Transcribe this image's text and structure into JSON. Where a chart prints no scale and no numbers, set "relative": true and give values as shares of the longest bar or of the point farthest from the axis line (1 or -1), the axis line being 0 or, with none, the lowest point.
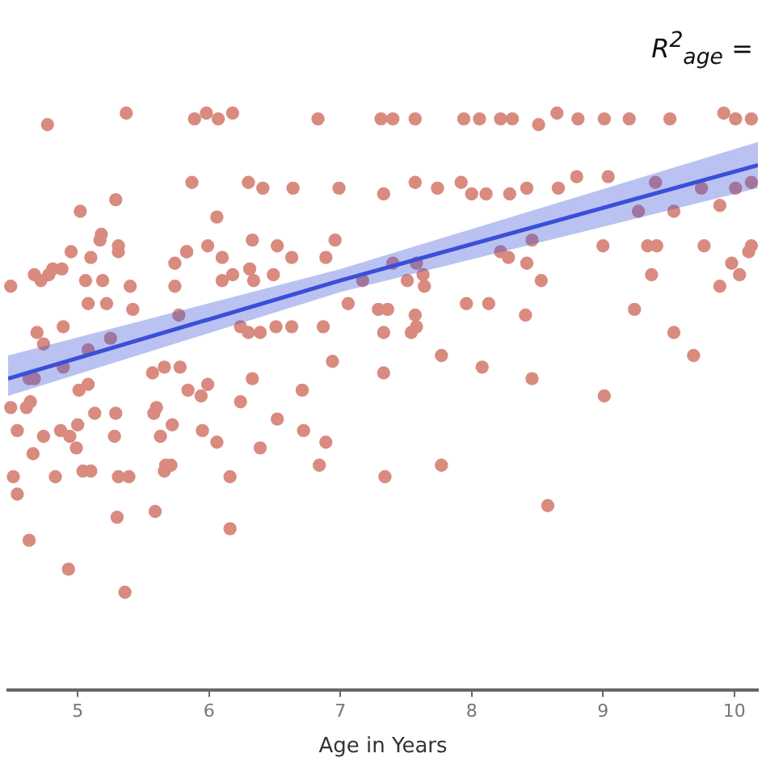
{
  "chart_data": {
    "type": "scatter",
    "relative": true,
    "xlabel": "Age in Years",
    "annotations": [
      "R$^{2}$$_{age}$ ="
    ],
    "xlim": [
      4.47,
      10.18
    ],
    "xticks": [
      5,
      6,
      7,
      8,
      9,
      10
    ],
    "grid": false,
    "legend": false,
    "series": [
      {
        "marker": "circle",
        "color": "#d98b80",
        "x": [
          4.77,
          5.37,
          5.89,
          5.98,
          6.07,
          6.18,
          6.83,
          7.31,
          7.4,
          7.57,
          7.94,
          8.06,
          8.22,
          8.31,
          8.51,
          8.65,
          8.81,
          9.01,
          9.2,
          9.51,
          9.92,
          10.01,
          10.13,
          5.87,
          6.3,
          6.41,
          6.64,
          6.99,
          7.33,
          7.57,
          7.74,
          7.92,
          8.0,
          8.11,
          8.29,
          8.42,
          8.66,
          8.8,
          9.04,
          9.4,
          9.75,
          10.01,
          10.13,
          5.02,
          5.29,
          6.06,
          9.27,
          9.54,
          9.89,
          4.95,
          5.17,
          5.31,
          5.83,
          5.99,
          6.33,
          6.52,
          6.96,
          8.46,
          9.0,
          9.34,
          9.41,
          9.77,
          10.13,
          4.49,
          4.67,
          4.72,
          4.78,
          4.81,
          4.88,
          5.1,
          5.18,
          5.31,
          5.06,
          5.19,
          5.4,
          5.08,
          5.22,
          5.42,
          4.89,
          4.69,
          4.74,
          5.08,
          5.25,
          4.89,
          4.63,
          4.67,
          5.08,
          5.01,
          4.64,
          4.61,
          4.49,
          5.13,
          5.29,
          5.0,
          4.54,
          4.74,
          4.87,
          4.94,
          5.28,
          4.99,
          4.66,
          5.04,
          5.1,
          4.83,
          5.31,
          5.39,
          4.51,
          5.74,
          5.83,
          6.1,
          6.63,
          6.89,
          5.74,
          6.1,
          6.18,
          6.31,
          6.34,
          6.49,
          5.77,
          6.24,
          6.3,
          6.39,
          6.51,
          6.63,
          6.87,
          7.06,
          5.57,
          5.66,
          5.78,
          6.33,
          5.99,
          5.84,
          5.94,
          5.6,
          5.58,
          6.24,
          6.71,
          6.94,
          5.72,
          5.95,
          6.52,
          6.72,
          5.63,
          6.06,
          6.39,
          6.89,
          6.84,
          5.67,
          5.71,
          5.66,
          6.16,
          7.34,
          7.17,
          7.29,
          7.36,
          7.33,
          7.51,
          7.57,
          7.58,
          7.54,
          7.64,
          7.63,
          7.4,
          7.58,
          7.77,
          7.33,
          7.77,
          7.96,
          8.13,
          8.08,
          8.22,
          8.28,
          8.42,
          8.53,
          8.41,
          8.46,
          9.01,
          9.24,
          9.37,
          9.54,
          9.69,
          9.89,
          9.98,
          10.04,
          10.11,
          4.54,
          4.63,
          4.93,
          5.3,
          5.36,
          5.59,
          6.16,
          8.58
        ],
        "values": [
          0.98,
          1.0,
          0.99,
          1.0,
          0.99,
          1.0,
          0.99,
          0.99,
          0.99,
          0.99,
          0.99,
          0.99,
          0.99,
          0.99,
          0.98,
          1.0,
          0.99,
          0.99,
          0.99,
          0.99,
          1.0,
          0.99,
          0.99,
          0.88,
          0.88,
          0.87,
          0.87,
          0.87,
          0.86,
          0.88,
          0.87,
          0.88,
          0.86,
          0.86,
          0.86,
          0.87,
          0.87,
          0.89,
          0.89,
          0.88,
          0.87,
          0.87,
          0.88,
          0.83,
          0.85,
          0.82,
          0.83,
          0.83,
          0.84,
          0.76,
          0.78,
          0.76,
          0.76,
          0.77,
          0.78,
          0.77,
          0.78,
          0.78,
          0.77,
          0.77,
          0.77,
          0.77,
          0.77,
          0.7,
          0.72,
          0.71,
          0.72,
          0.73,
          0.73,
          0.75,
          0.79,
          0.77,
          0.71,
          0.71,
          0.7,
          0.67,
          0.67,
          0.66,
          0.63,
          0.62,
          0.6,
          0.59,
          0.61,
          0.56,
          0.54,
          0.54,
          0.53,
          0.52,
          0.5,
          0.49,
          0.49,
          0.48,
          0.48,
          0.46,
          0.45,
          0.44,
          0.45,
          0.44,
          0.44,
          0.42,
          0.41,
          0.38,
          0.38,
          0.37,
          0.37,
          0.37,
          0.37,
          0.74,
          0.76,
          0.75,
          0.75,
          0.75,
          0.7,
          0.71,
          0.72,
          0.73,
          0.71,
          0.72,
          0.65,
          0.63,
          0.62,
          0.62,
          0.63,
          0.63,
          0.63,
          0.67,
          0.55,
          0.56,
          0.56,
          0.54,
          0.53,
          0.52,
          0.51,
          0.49,
          0.48,
          0.5,
          0.52,
          0.57,
          0.46,
          0.45,
          0.47,
          0.45,
          0.44,
          0.43,
          0.42,
          0.43,
          0.39,
          0.39,
          0.39,
          0.38,
          0.37,
          0.37,
          0.71,
          0.66,
          0.66,
          0.62,
          0.71,
          0.65,
          0.63,
          0.62,
          0.7,
          0.72,
          0.74,
          0.74,
          0.58,
          0.55,
          0.39,
          0.67,
          0.67,
          0.56,
          0.76,
          0.75,
          0.74,
          0.71,
          0.65,
          0.54,
          0.51,
          0.66,
          0.72,
          0.62,
          0.58,
          0.7,
          0.74,
          0.72,
          0.76,
          0.34,
          0.26,
          0.21,
          0.3,
          0.17,
          0.31,
          0.28,
          0.32
        ]
      },
      {
        "type": "line",
        "color": "#3a4fd8",
        "x": [
          4.47,
          7,
          10.18
        ],
        "values": [
          0.54,
          0.71,
          0.91
        ],
        "lower": [
          0.51,
          0.69,
          0.87
        ],
        "upper": [
          0.58,
          0.73,
          0.95
        ]
      }
    ]
  }
}
